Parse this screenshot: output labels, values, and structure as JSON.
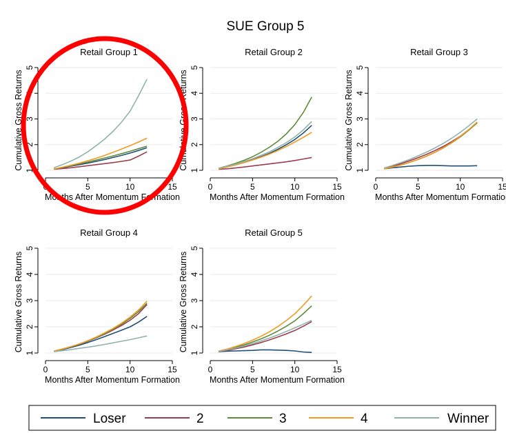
{
  "figure": {
    "title": "SUE Group 5"
  },
  "colors": {
    "series": [
      "#1f4e79",
      "#9b3d4f",
      "#5f8a3a",
      "#f29a1f",
      "#8fb3aa"
    ],
    "highlight": "#ff0000",
    "grid": "#eaeaea",
    "axis": "#000000"
  },
  "chart_data": [
    {
      "type": "line",
      "title": "Retail Group 1",
      "xlabel": "Months After Momentum Formation",
      "ylabel": "Cumulative Gross Returns",
      "xlim": [
        0,
        15
      ],
      "ylim": [
        1,
        5
      ],
      "xticks": [
        "0",
        "5",
        "10",
        "15"
      ],
      "yticks": [
        "1",
        "2",
        "3",
        "4",
        "5"
      ],
      "x": [
        1,
        2,
        3,
        4,
        5,
        6,
        7,
        8,
        9,
        10,
        11,
        12
      ],
      "series": [
        {
          "name": "Loser",
          "values": [
            1.05,
            1.1,
            1.16,
            1.22,
            1.28,
            1.35,
            1.42,
            1.5,
            1.58,
            1.67,
            1.77,
            1.88
          ]
        },
        {
          "name": "2",
          "values": [
            1.04,
            1.07,
            1.1,
            1.14,
            1.18,
            1.22,
            1.26,
            1.3,
            1.35,
            1.4,
            1.55,
            1.72
          ]
        },
        {
          "name": "3",
          "values": [
            1.05,
            1.11,
            1.18,
            1.25,
            1.32,
            1.4,
            1.48,
            1.56,
            1.65,
            1.74,
            1.84,
            1.94
          ]
        },
        {
          "name": "4",
          "values": [
            1.05,
            1.12,
            1.2,
            1.28,
            1.37,
            1.47,
            1.58,
            1.7,
            1.83,
            1.96,
            2.1,
            2.25
          ]
        },
        {
          "name": "Winner",
          "values": [
            1.1,
            1.22,
            1.36,
            1.52,
            1.72,
            1.96,
            2.22,
            2.52,
            2.88,
            3.3,
            3.9,
            4.55
          ]
        }
      ],
      "highlighted": true
    },
    {
      "type": "line",
      "title": "Retail Group 2",
      "xlabel": "Months After Momentum Formation",
      "ylabel": "Cumulative Gross Returns",
      "xlim": [
        0,
        15
      ],
      "ylim": [
        1,
        5
      ],
      "xticks": [
        "0",
        "5",
        "10",
        "15"
      ],
      "yticks": [
        "1",
        "2",
        "3",
        "4",
        "5"
      ],
      "x": [
        1,
        2,
        3,
        4,
        5,
        6,
        7,
        8,
        9,
        10,
        11,
        12
      ],
      "series": [
        {
          "name": "Loser",
          "values": [
            1.07,
            1.14,
            1.22,
            1.31,
            1.41,
            1.53,
            1.66,
            1.82,
            2.0,
            2.2,
            2.45,
            2.75
          ]
        },
        {
          "name": "2",
          "values": [
            1.04,
            1.06,
            1.09,
            1.13,
            1.17,
            1.21,
            1.25,
            1.29,
            1.33,
            1.38,
            1.44,
            1.5
          ]
        },
        {
          "name": "3",
          "values": [
            1.08,
            1.17,
            1.27,
            1.39,
            1.53,
            1.7,
            1.9,
            2.13,
            2.42,
            2.78,
            3.25,
            3.85
          ]
        },
        {
          "name": "4",
          "values": [
            1.06,
            1.13,
            1.21,
            1.3,
            1.4,
            1.51,
            1.63,
            1.77,
            1.93,
            2.1,
            2.28,
            2.48
          ]
        },
        {
          "name": "Winner",
          "values": [
            1.08,
            1.16,
            1.24,
            1.34,
            1.45,
            1.58,
            1.72,
            1.89,
            2.08,
            2.3,
            2.57,
            2.9
          ]
        }
      ],
      "highlighted": false
    },
    {
      "type": "line",
      "title": "Retail Group 3",
      "xlabel": "Months After Momentum Formation",
      "ylabel": "Cumulative Gross Returns",
      "xlim": [
        0,
        15
      ],
      "ylim": [
        1,
        5
      ],
      "xticks": [
        "0",
        "5",
        "10",
        "15"
      ],
      "yticks": [
        "1",
        "2",
        "3",
        "4",
        "5"
      ],
      "x": [
        1,
        2,
        3,
        4,
        5,
        6,
        7,
        8,
        9,
        10,
        11,
        12
      ],
      "series": [
        {
          "name": "Loser",
          "values": [
            1.06,
            1.1,
            1.13,
            1.16,
            1.18,
            1.19,
            1.19,
            1.18,
            1.17,
            1.17,
            1.17,
            1.18
          ]
        },
        {
          "name": "2",
          "values": [
            1.08,
            1.16,
            1.26,
            1.37,
            1.49,
            1.62,
            1.77,
            1.93,
            2.12,
            2.33,
            2.58,
            2.85
          ]
        },
        {
          "name": "3",
          "values": [
            1.06,
            1.13,
            1.21,
            1.31,
            1.42,
            1.55,
            1.7,
            1.87,
            2.07,
            2.3,
            2.56,
            2.85
          ]
        },
        {
          "name": "4",
          "values": [
            1.06,
            1.13,
            1.21,
            1.31,
            1.42,
            1.55,
            1.7,
            1.88,
            2.08,
            2.32,
            2.58,
            2.88
          ]
        },
        {
          "name": "Winner",
          "values": [
            1.09,
            1.19,
            1.3,
            1.42,
            1.56,
            1.71,
            1.87,
            2.05,
            2.25,
            2.48,
            2.73,
            3.0
          ]
        }
      ],
      "highlighted": false
    },
    {
      "type": "line",
      "title": "Retail Group 4",
      "xlabel": "Months After Momentum Formation",
      "ylabel": "Cumulative Gross Returns",
      "xlim": [
        0,
        15
      ],
      "ylim": [
        1,
        5
      ],
      "xticks": [
        "0",
        "5",
        "10",
        "15"
      ],
      "yticks": [
        "1",
        "2",
        "3",
        "4",
        "5"
      ],
      "x": [
        1,
        2,
        3,
        4,
        5,
        6,
        7,
        8,
        9,
        10,
        11,
        12
      ],
      "series": [
        {
          "name": "Loser",
          "values": [
            1.06,
            1.13,
            1.21,
            1.3,
            1.4,
            1.51,
            1.63,
            1.75,
            1.87,
            2.0,
            2.18,
            2.4
          ]
        },
        {
          "name": "2",
          "values": [
            1.07,
            1.15,
            1.24,
            1.34,
            1.45,
            1.58,
            1.72,
            1.88,
            2.05,
            2.25,
            2.5,
            2.85
          ]
        },
        {
          "name": "3",
          "values": [
            1.07,
            1.15,
            1.24,
            1.34,
            1.46,
            1.59,
            1.74,
            1.91,
            2.1,
            2.32,
            2.58,
            2.9
          ]
        },
        {
          "name": "4",
          "values": [
            1.07,
            1.15,
            1.24,
            1.35,
            1.47,
            1.61,
            1.77,
            1.94,
            2.14,
            2.37,
            2.64,
            2.98
          ]
        },
        {
          "name": "Winner",
          "values": [
            1.05,
            1.09,
            1.13,
            1.18,
            1.22,
            1.27,
            1.33,
            1.39,
            1.45,
            1.51,
            1.58,
            1.65
          ]
        }
      ],
      "highlighted": false
    },
    {
      "type": "line",
      "title": "Retail Group 5",
      "xlabel": "Months After Momentum Formation",
      "ylabel": "Cumulative Gross Returns",
      "xlim": [
        0,
        15
      ],
      "ylim": [
        1,
        5
      ],
      "xticks": [
        "0",
        "5",
        "10",
        "15"
      ],
      "yticks": [
        "1",
        "2",
        "3",
        "4",
        "5"
      ],
      "x": [
        1,
        2,
        3,
        4,
        5,
        6,
        7,
        8,
        9,
        10,
        11,
        12
      ],
      "series": [
        {
          "name": "Loser",
          "values": [
            1.05,
            1.07,
            1.08,
            1.09,
            1.1,
            1.12,
            1.12,
            1.11,
            1.1,
            1.08,
            1.04,
            1.02
          ]
        },
        {
          "name": "2",
          "values": [
            1.05,
            1.1,
            1.16,
            1.23,
            1.31,
            1.4,
            1.5,
            1.61,
            1.73,
            1.86,
            2.02,
            2.2
          ]
        },
        {
          "name": "3",
          "values": [
            1.07,
            1.14,
            1.22,
            1.31,
            1.42,
            1.54,
            1.68,
            1.84,
            2.02,
            2.23,
            2.5,
            2.8
          ]
        },
        {
          "name": "4",
          "values": [
            1.07,
            1.15,
            1.25,
            1.36,
            1.49,
            1.64,
            1.81,
            2.01,
            2.24,
            2.5,
            2.82,
            3.18
          ]
        },
        {
          "name": "Winner",
          "values": [
            1.06,
            1.12,
            1.19,
            1.27,
            1.36,
            1.46,
            1.57,
            1.69,
            1.82,
            1.96,
            2.1,
            2.25
          ]
        }
      ],
      "highlighted": false
    }
  ],
  "legend": {
    "placement": "bottom",
    "items": [
      "Loser",
      "2",
      "3",
      "4",
      "Winner"
    ]
  }
}
